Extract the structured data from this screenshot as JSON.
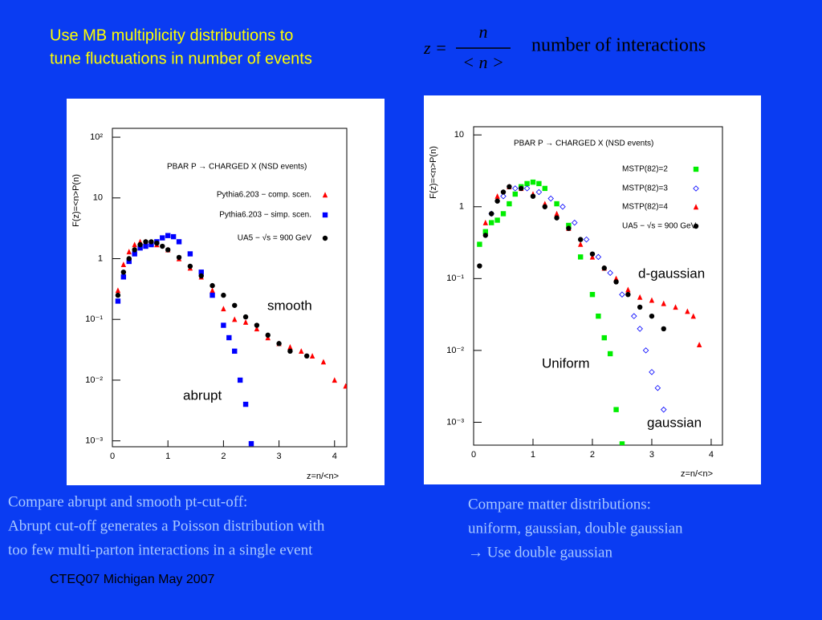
{
  "slide": {
    "title": [
      "Use MB multiplicity distributions to",
      "tune fluctuations in number of events"
    ],
    "formula": {
      "lhs": "z =",
      "numerator": "n",
      "denominator": "< n >",
      "text": "number of interactions"
    },
    "captions": [
      [
        "Compare abrupt and smooth pt-cut-off:",
        "Abrupt cut-off generates a Poisson distribution with",
        "too few multi-parton interactions in a single event"
      ],
      [
        "Compare matter distributions:",
        "uniform, gaussian, double gaussian",
        "→ Use double gaussian"
      ]
    ],
    "footer": "CTEQ07 Michigan May 2007"
  },
  "chart_data": [
    {
      "type": "scatter",
      "title": "PBAR P → CHARGED X   (NSD events)",
      "x_label": "z=n/<n>",
      "y_label": "F(z)=<n>P(n)",
      "log_y": true,
      "xlim": [
        0,
        4.22
      ],
      "ylim": [
        0.0008,
        140
      ],
      "xticks": [
        0,
        1,
        2,
        3,
        4
      ],
      "yticks": [
        {
          "value": 100,
          "label": "10²"
        },
        10,
        1,
        {
          "value": 0.1,
          "label": "10⁻¹"
        },
        {
          "value": 0.01,
          "label": "10⁻²"
        },
        {
          "value": 0.001,
          "label": "10⁻³"
        }
      ],
      "annotations": [
        "smooth",
        "abrupt"
      ],
      "series": [
        {
          "name": "Pythia6.203 − comp. scen.",
          "color": "#ff0000",
          "marker": "triangle",
          "x": [
            0.1,
            0.2,
            0.3,
            0.4,
            0.5,
            0.6,
            0.7,
            0.8,
            1.0,
            1.2,
            1.4,
            1.6,
            1.8,
            2.0,
            2.2,
            2.4,
            2.6,
            2.8,
            3.0,
            3.2,
            3.4,
            3.6,
            3.8,
            4.0,
            4.2
          ],
          "values": [
            0.3,
            0.8,
            1.3,
            1.7,
            1.9,
            1.9,
            1.8,
            1.7,
            1.4,
            1.0,
            0.7,
            0.5,
            0.3,
            0.15,
            0.1,
            0.09,
            0.07,
            0.05,
            0.04,
            0.035,
            0.03,
            0.025,
            0.02,
            0.01,
            0.008
          ]
        },
        {
          "name": "Pythia6.203 − simp. scen.",
          "color": "#0000ff",
          "marker": "square",
          "x": [
            0.1,
            0.2,
            0.3,
            0.4,
            0.5,
            0.6,
            0.7,
            0.8,
            0.9,
            1.0,
            1.1,
            1.2,
            1.4,
            1.6,
            1.8,
            2.0,
            2.1,
            2.2,
            2.3,
            2.4,
            2.5
          ],
          "values": [
            0.2,
            0.5,
            0.9,
            1.2,
            1.5,
            1.6,
            1.7,
            1.9,
            2.2,
            2.4,
            2.3,
            1.9,
            1.2,
            0.6,
            0.25,
            0.08,
            0.05,
            0.03,
            0.01,
            0.004,
            0.0009
          ]
        },
        {
          "name": "UA5 − √s = 900 GeV",
          "color": "#000000",
          "marker": "circle",
          "x": [
            0.1,
            0.2,
            0.3,
            0.4,
            0.5,
            0.6,
            0.7,
            0.8,
            0.9,
            1.0,
            1.2,
            1.4,
            1.6,
            1.8,
            2.0,
            2.2,
            2.4,
            2.6,
            2.8,
            3.0,
            3.2,
            3.5
          ],
          "values": [
            0.25,
            0.6,
            1.0,
            1.4,
            1.7,
            1.9,
            1.9,
            1.8,
            1.6,
            1.4,
            1.05,
            0.75,
            0.52,
            0.36,
            0.25,
            0.17,
            0.11,
            0.08,
            0.055,
            0.04,
            0.03,
            0.025
          ]
        }
      ]
    },
    {
      "type": "scatter",
      "title": "PBAR P → CHARGED X   (NSD events)",
      "x_label": "z=n/<n>",
      "y_label": "F(z)=<n>P(n)",
      "log_y": true,
      "xlim": [
        0,
        4.19
      ],
      "ylim": [
        0.00048,
        13
      ],
      "xticks": [
        0,
        1,
        2,
        3,
        4
      ],
      "yticks": [
        10,
        1,
        {
          "value": 0.1,
          "label": "10⁻¹"
        },
        {
          "value": 0.01,
          "label": "10⁻²"
        },
        {
          "value": 0.001,
          "label": "10⁻³"
        }
      ],
      "annotations": [
        "d-gaussian",
        "Uniform",
        "gaussian"
      ],
      "series": [
        {
          "name": "MSTP(82)=2",
          "color": "#00ee00",
          "marker": "square",
          "x": [
            0.1,
            0.2,
            0.3,
            0.4,
            0.5,
            0.6,
            0.7,
            0.8,
            0.9,
            1.0,
            1.1,
            1.2,
            1.4,
            1.6,
            1.8,
            2.0,
            2.1,
            2.2,
            2.3,
            2.4,
            2.5
          ],
          "values": [
            0.3,
            0.45,
            0.6,
            0.65,
            0.8,
            1.1,
            1.5,
            1.9,
            2.1,
            2.2,
            2.1,
            1.8,
            1.1,
            0.55,
            0.2,
            0.06,
            0.03,
            0.015,
            0.009,
            0.0015,
            0.0005
          ]
        },
        {
          "name": "MSTP(82)=3",
          "color": "#0000ff",
          "marker": "diamond",
          "x": [
            0.3,
            0.5,
            0.7,
            0.9,
            1.1,
            1.3,
            1.5,
            1.7,
            1.9,
            2.1,
            2.3,
            2.5,
            2.7,
            2.8,
            2.9,
            3.0,
            3.1,
            3.2
          ],
          "values": [
            0.8,
            1.4,
            1.8,
            1.8,
            1.6,
            1.3,
            1.0,
            0.6,
            0.35,
            0.2,
            0.12,
            0.06,
            0.03,
            0.02,
            0.01,
            0.005,
            0.003,
            0.0015
          ]
        },
        {
          "name": "MSTP(82)=4",
          "color": "#ff0000",
          "marker": "triangle",
          "x": [
            0.2,
            0.4,
            0.6,
            0.8,
            1.0,
            1.2,
            1.4,
            1.6,
            1.8,
            2.0,
            2.2,
            2.4,
            2.6,
            2.8,
            3.0,
            3.2,
            3.4,
            3.6,
            3.7,
            3.8
          ],
          "values": [
            0.6,
            1.4,
            1.9,
            1.8,
            1.5,
            1.1,
            0.8,
            0.5,
            0.3,
            0.2,
            0.14,
            0.1,
            0.07,
            0.055,
            0.05,
            0.045,
            0.04,
            0.035,
            0.03,
            0.012
          ]
        },
        {
          "name": "UA5 − √s = 900 GeV",
          "color": "#000000",
          "marker": "circle",
          "x": [
            0.1,
            0.2,
            0.3,
            0.4,
            0.5,
            0.6,
            0.8,
            1.0,
            1.2,
            1.4,
            1.6,
            1.8,
            2.0,
            2.2,
            2.4,
            2.6,
            2.8,
            3.0,
            3.2
          ],
          "values": [
            0.15,
            0.4,
            0.8,
            1.2,
            1.6,
            1.9,
            1.8,
            1.4,
            1.0,
            0.7,
            0.5,
            0.35,
            0.22,
            0.14,
            0.09,
            0.06,
            0.04,
            0.03,
            0.02
          ]
        }
      ]
    }
  ]
}
